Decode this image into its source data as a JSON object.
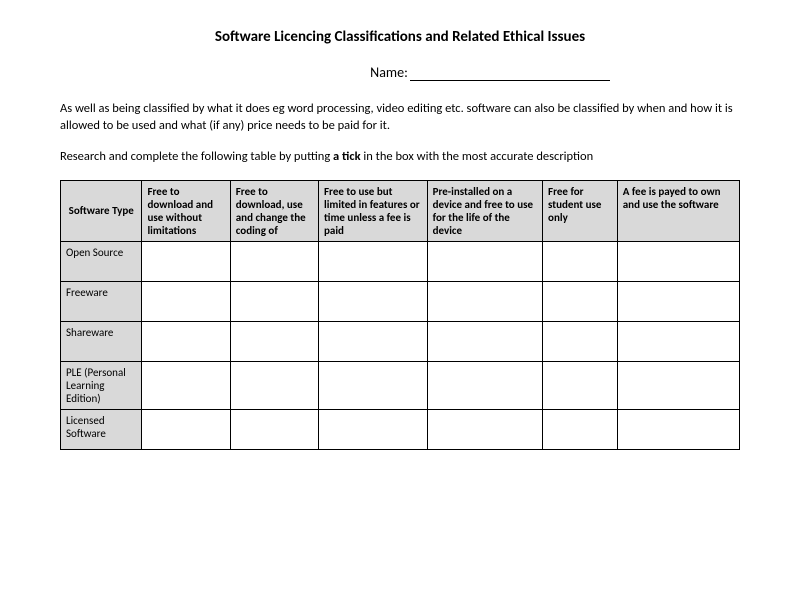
{
  "title": "Software Licencing Classifications and Related Ethical Issues",
  "name_label": "Name:",
  "paragraph1": "As well as being classified by what it does eg word processing, video editing etc. software can also be classified by when and how it is allowed to be used and what (if any) price needs to be paid for it.",
  "paragraph2_pre": "Research and complete the following table by putting ",
  "paragraph2_bold": "a tick",
  "paragraph2_post": " in the box with the most accurate description",
  "table": {
    "header_rowhead": "Software Type",
    "columns": [
      "Free to download and use without limitations",
      "Free to download, use and change the coding of",
      "Free to use but limited in features or time unless a fee is paid",
      "Pre-installed on a device and free to use for the life of the device",
      "Free for student use only",
      "A fee is payed to own and use the software"
    ],
    "rows": [
      "Open Source",
      "Freeware",
      "Shareware",
      "PLE (Personal Learning Edition)",
      "Licensed Software"
    ],
    "header_bg": "#d9d9d9",
    "rowlabel_bg": "#d9d9d9",
    "cell_bg": "#ffffff",
    "border_color": "#000000",
    "font_size": 11
  }
}
